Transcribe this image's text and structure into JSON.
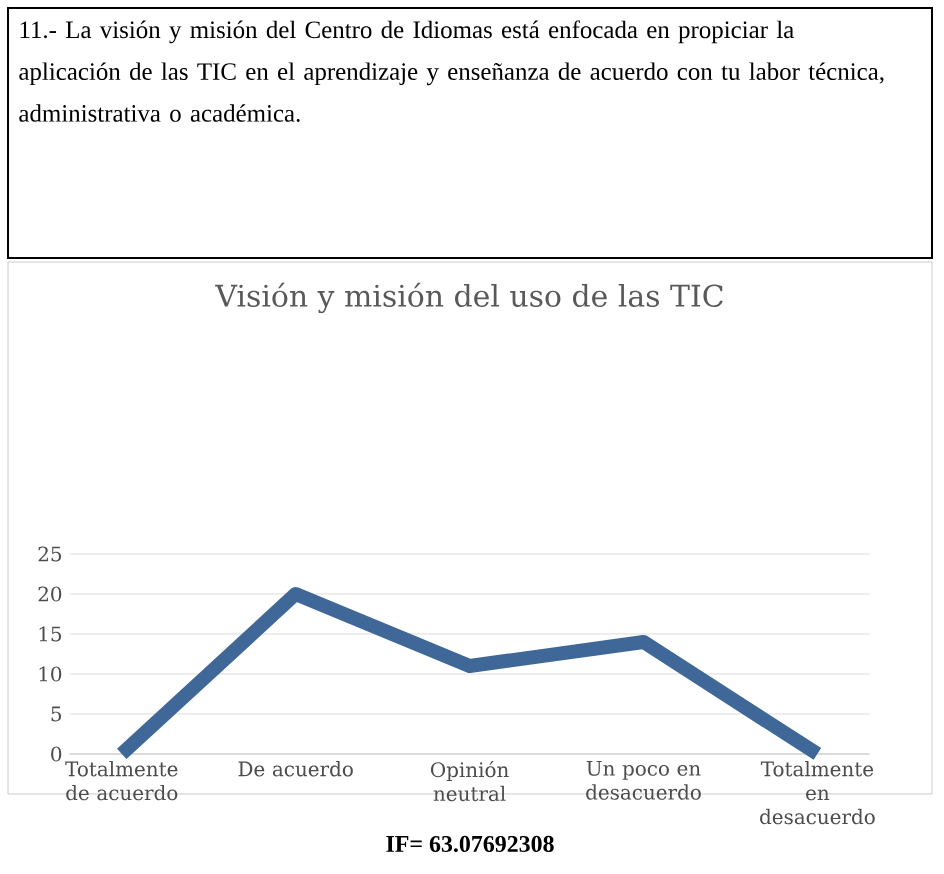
{
  "chart_data": {
    "type": "line",
    "title": "Visión y misión del uso de las TIC",
    "categories": [
      "Totalmente de acuerdo",
      "De acuerdo",
      "Opinión neutral",
      "Un poco en desacuerdo",
      "Totalmente en desacuerdo"
    ],
    "values": [
      0,
      20,
      11,
      14,
      0
    ],
    "color": "#3f6797",
    "ylim": [
      0,
      25
    ],
    "yticks": [
      0,
      5,
      10,
      15,
      20,
      25
    ],
    "grid": "y",
    "marker": "none",
    "line_style": "solid",
    "annotations": [
      "11.- La visión y misión del Centro de Idiomas está enfocada en propiciar la aplicación de las TIC en el aprendizaje y enseñanza de acuerdo con tu labor técnica, administrativa o académica.",
      "**IF= 63.07692308**"
    ]
  }
}
